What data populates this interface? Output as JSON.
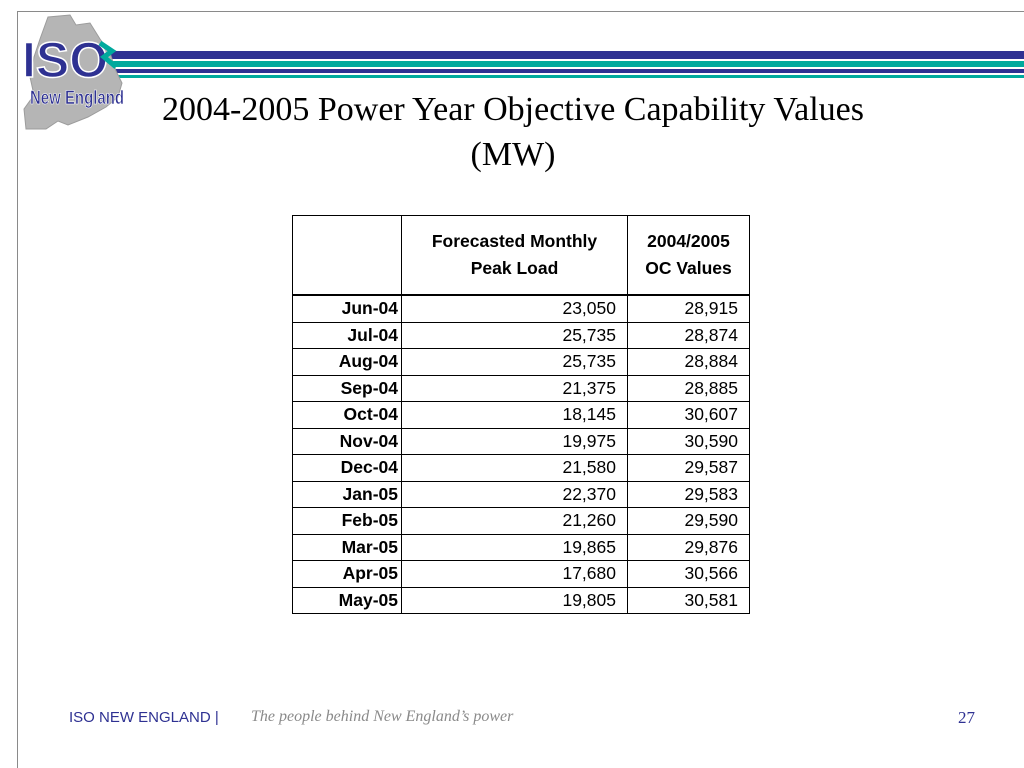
{
  "logo": {
    "top_text": "ISO",
    "bottom_text": "New England",
    "icon": "iso-new-england-logo"
  },
  "slide": {
    "title_line1": "2004-2005 Power Year Objective Capability Values",
    "title_line2": "(MW)"
  },
  "table": {
    "headers": [
      "",
      "Forecasted Monthly Peak Load",
      "2004/2005 OC Values"
    ],
    "header_lines": {
      "col1": [
        "Forecasted Monthly",
        "Peak Load"
      ],
      "col2": [
        "2004/2005",
        "OC Values"
      ]
    },
    "rows": [
      [
        "Jun-04",
        "23,050",
        "28,915"
      ],
      [
        "Jul-04",
        "25,735",
        "28,874"
      ],
      [
        "Aug-04",
        "25,735",
        "28,884"
      ],
      [
        "Sep-04",
        "21,375",
        "28,885"
      ],
      [
        "Oct-04",
        "18,145",
        "30,607"
      ],
      [
        "Nov-04",
        "19,975",
        "30,590"
      ],
      [
        "Dec-04",
        "21,580",
        "29,587"
      ],
      [
        "Jan-05",
        "22,370",
        "29,583"
      ],
      [
        "Feb-05",
        "21,260",
        "29,590"
      ],
      [
        "Mar-05",
        "19,865",
        "29,876"
      ],
      [
        "Apr-05",
        "17,680",
        "30,566"
      ],
      [
        "May-05",
        "19,805",
        "30,581"
      ]
    ]
  },
  "footer": {
    "org": "ISO NEW ENGLAND |",
    "tagline": "The people behind New England’s power",
    "page_number": "27"
  },
  "colors": {
    "brand_blue": "#2e3192",
    "brand_teal": "#00a99d",
    "footer_gray": "#8a8a8a"
  }
}
